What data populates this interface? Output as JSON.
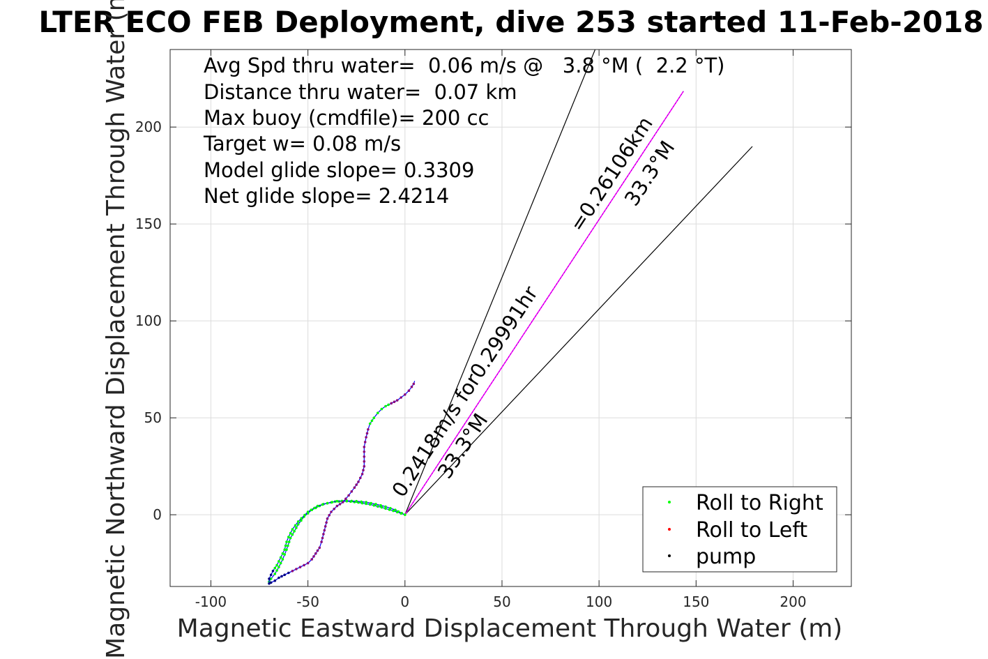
{
  "chart_data": {
    "type": "scatter",
    "title": "LTER ECO FEB Deployment, dive 253 started 11-Feb-2018",
    "xlabel": "Magnetic Eastward Displacement Through Water (m)",
    "ylabel": "Magnetic Northward Displacement Through Water (m)",
    "xlim": [
      -121,
      230
    ],
    "ylim": [
      -37,
      240
    ],
    "xticks": [
      -100,
      -50,
      0,
      50,
      100,
      150,
      200
    ],
    "yticks": [
      0,
      50,
      100,
      150,
      200
    ],
    "grid": true,
    "legend_position": "bottom-right",
    "annotations": [
      "Avg Spd thru water=  0.06 m/s @   3.8 °M (  2.2 °T)",
      "Distance thru water=  0.07 km",
      "Max buoy (cmdfile)= 200 cc",
      "Target w= 0.08 m/s",
      "Model glide slope= 0.3309",
      "Net glide slope= 2.4214"
    ],
    "line_annotations": {
      "upper": "=0.26106km",
      "upper_heading": "33.3°M",
      "lower": "0.2418m/s for0.29991hr",
      "lower_heading": "33.3°M"
    },
    "legend": [
      "Roll to Right",
      "Roll to Left",
      "pump"
    ],
    "colors": {
      "roll_right": "#00ff00",
      "roll_left": "#ff0000",
      "pump": "#000000",
      "track": "#0000ff",
      "overlap_marker": "#8b0a7a",
      "vector": "#ff00ff",
      "cone": "#000000",
      "grid": "#dcdcdc"
    },
    "series": {
      "track_a": {
        "x": [
          0,
          -5,
          -10,
          -15,
          -20,
          -25,
          -30,
          -35,
          -40,
          -45,
          -50,
          -55,
          -58,
          -60,
          -61,
          -62,
          -64,
          -66,
          -68,
          -69,
          -70,
          -70,
          -69,
          -67,
          -65,
          -62,
          -58,
          -54,
          -50,
          -48,
          -46,
          -44,
          -43,
          -42,
          -41,
          -40,
          -38,
          -35,
          -32
        ],
        "y": [
          0,
          2.5,
          4.2,
          5.5,
          6.5,
          7,
          7.2,
          7,
          6,
          4.5,
          1.5,
          -3.5,
          -7.5,
          -11.5,
          -14,
          -18,
          -22,
          -26,
          -29,
          -31,
          -33,
          -35.5,
          -35,
          -34,
          -32.5,
          -31,
          -29,
          -27,
          -25,
          -23,
          -20,
          -17,
          -14,
          -10,
          -6,
          -2,
          1.5,
          4.5,
          6.5
        ]
      },
      "track_b": {
        "x": [
          -32,
          -29,
          -26,
          -24,
          -22,
          -21,
          -21,
          -21,
          -20,
          -19,
          -18,
          -16,
          -14,
          -12,
          -10,
          -7,
          -4,
          -2,
          0,
          2,
          3.5,
          4.5,
          5
        ],
        "y": [
          6.5,
          10,
          14,
          17,
          21,
          25,
          30,
          35,
          40,
          44,
          47,
          50,
          52.5,
          54.5,
          56,
          57.5,
          59,
          60.5,
          62,
          64,
          66,
          67.5,
          69
        ]
      },
      "track_c": {
        "x": [
          0,
          -6,
          -12,
          -18,
          -24,
          -30,
          -36,
          -42,
          -48,
          -52,
          -55,
          -57,
          -59,
          -61,
          -63,
          -65,
          -67,
          -69,
          -70,
          -70
        ],
        "y": [
          0,
          2,
          3.8,
          5.3,
          6.3,
          7,
          6.8,
          5.5,
          2.5,
          -1,
          -5,
          -8.5,
          -12,
          -18,
          -23,
          -27,
          -30.5,
          -33,
          -34.5,
          -36
        ]
      },
      "vector": {
        "from": [
          0,
          0
        ],
        "to": [
          143.5,
          218.5
        ]
      },
      "cone": [
        {
          "from": [
            0,
            0
          ],
          "to": [
            98,
            240
          ]
        },
        {
          "from": [
            0,
            0
          ],
          "to": [
            179,
            190
          ]
        }
      ]
    }
  }
}
